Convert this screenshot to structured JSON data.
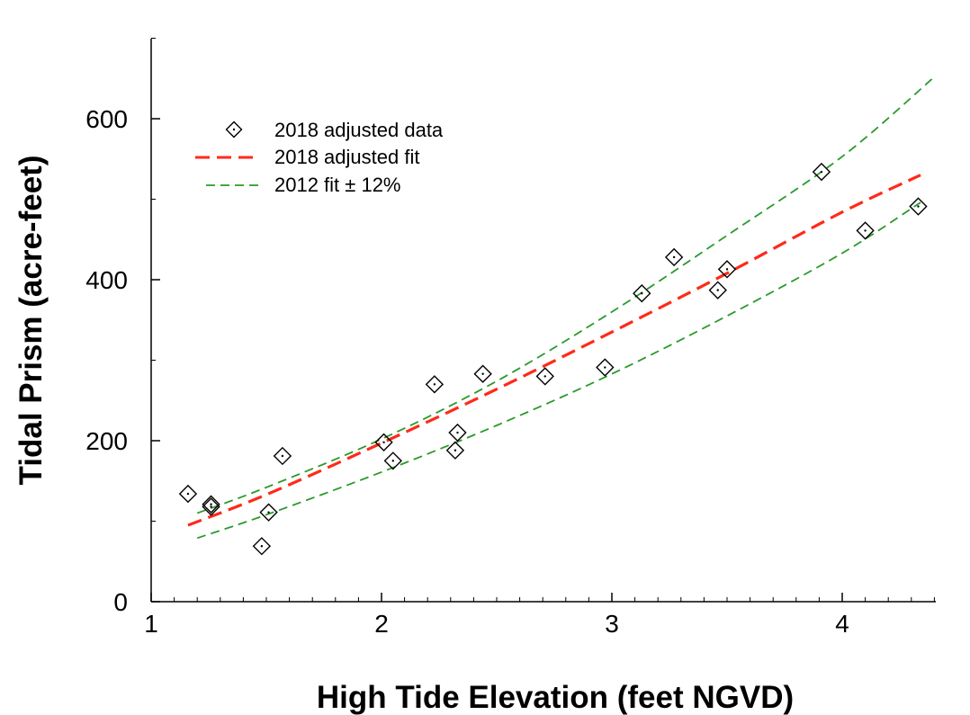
{
  "chart_data": {
    "type": "scatter",
    "title": "",
    "xlabel": "High Tide Elevation (feet NGVD)",
    "ylabel": "Tidal Prism (acre-feet)",
    "xlim": [
      1,
      4.4
    ],
    "ylim": [
      0,
      700
    ],
    "x_ticks": [
      1,
      2,
      3,
      4
    ],
    "x_tick_labels": [
      "1",
      "2",
      "3",
      "4"
    ],
    "y_ticks": [
      0,
      200,
      400,
      600
    ],
    "y_tick_labels": [
      "0",
      "200",
      "400",
      "600"
    ],
    "grid": false,
    "legend_position": "top-left",
    "series": [
      {
        "name": "2018 adjusted data",
        "kind": "points",
        "marker": "diamond-dot",
        "color": "#000000",
        "points": [
          {
            "x": 1.16,
            "y": 134
          },
          {
            "x": 1.26,
            "y": 121
          },
          {
            "x": 1.26,
            "y": 118
          },
          {
            "x": 1.48,
            "y": 69
          },
          {
            "x": 1.51,
            "y": 111
          },
          {
            "x": 1.57,
            "y": 181
          },
          {
            "x": 2.01,
            "y": 198
          },
          {
            "x": 2.05,
            "y": 175
          },
          {
            "x": 2.23,
            "y": 270
          },
          {
            "x": 2.32,
            "y": 188
          },
          {
            "x": 2.33,
            "y": 210
          },
          {
            "x": 2.44,
            "y": 283
          },
          {
            "x": 2.71,
            "y": 280
          },
          {
            "x": 2.97,
            "y": 291
          },
          {
            "x": 3.13,
            "y": 383
          },
          {
            "x": 3.27,
            "y": 428
          },
          {
            "x": 3.46,
            "y": 387
          },
          {
            "x": 3.5,
            "y": 413
          },
          {
            "x": 3.91,
            "y": 534
          },
          {
            "x": 4.1,
            "y": 461
          },
          {
            "x": 4.33,
            "y": 491
          }
        ]
      },
      {
        "name": "2018 adjusted fit",
        "kind": "line",
        "color": "#ff2a1a",
        "dash": "long",
        "points": [
          {
            "x": 1.16,
            "y": 95
          },
          {
            "x": 1.5,
            "y": 133
          },
          {
            "x": 2.0,
            "y": 197
          },
          {
            "x": 2.5,
            "y": 264
          },
          {
            "x": 3.0,
            "y": 335
          },
          {
            "x": 3.5,
            "y": 408
          },
          {
            "x": 4.0,
            "y": 484
          },
          {
            "x": 4.34,
            "y": 530
          }
        ]
      },
      {
        "name": "2012 fit ± 12%",
        "kind": "line",
        "color": "#2a9a2a",
        "dash": "short",
        "points": [
          {
            "x": 1.2,
            "y": 110
          },
          {
            "x": 1.5,
            "y": 142
          },
          {
            "x": 2.0,
            "y": 202
          },
          {
            "x": 2.5,
            "y": 274
          },
          {
            "x": 3.0,
            "y": 360
          },
          {
            "x": 3.5,
            "y": 455
          },
          {
            "x": 4.0,
            "y": 553
          },
          {
            "x": 4.4,
            "y": 652
          }
        ]
      },
      {
        "name": "",
        "kind": "line",
        "color": "#2a9a2a",
        "dash": "short",
        "points": [
          {
            "x": 1.2,
            "y": 79
          },
          {
            "x": 1.5,
            "y": 108
          },
          {
            "x": 2.0,
            "y": 161
          },
          {
            "x": 2.5,
            "y": 219
          },
          {
            "x": 3.0,
            "y": 283
          },
          {
            "x": 3.5,
            "y": 355
          },
          {
            "x": 4.0,
            "y": 433
          },
          {
            "x": 4.34,
            "y": 496
          }
        ]
      }
    ]
  }
}
